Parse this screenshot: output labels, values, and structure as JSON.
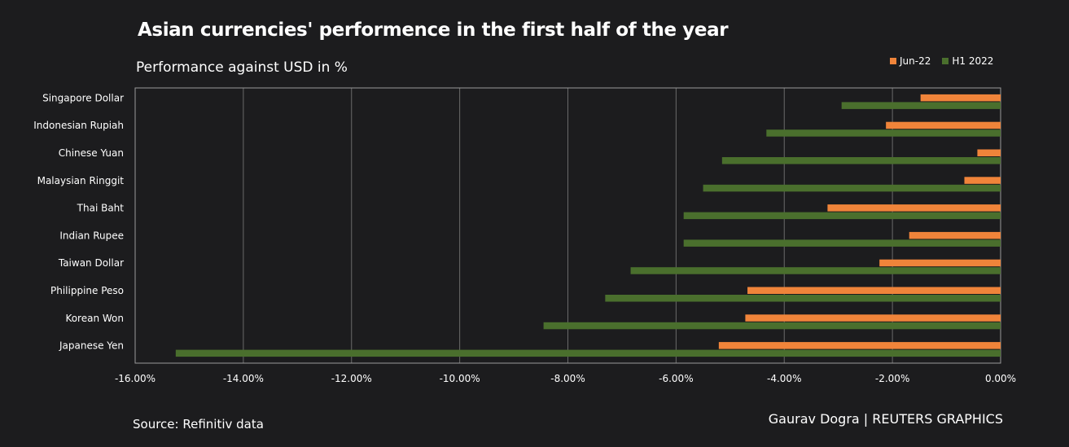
{
  "title": "Asian currencies' performence in the first half of the year",
  "subtitle": "Performance against USD in %",
  "source": "Source: Refinitiv data",
  "credit": "Gaurav Dogra | REUTERS GRAPHICS",
  "colors": {
    "background": "#1c1c1e",
    "jun22": "#f0843a",
    "h1_2022": "#4a6f2d",
    "grid": "#6a6a6a",
    "axis": "#9a9a9a"
  },
  "chart_data": {
    "type": "bar",
    "orientation": "horizontal",
    "categories": [
      "Singapore Dollar",
      "Indonesian Rupiah",
      "Chinese Yuan",
      "Malaysian Ringgit",
      "Thai Baht",
      "Indian Rupee",
      "Taiwan Dollar",
      "Philippine Peso",
      "Korean Won",
      "Japanese Yen"
    ],
    "series": [
      {
        "name": "Jun-22",
        "color": "#f0843a",
        "values": [
          -1.48,
          -2.12,
          -0.43,
          -0.67,
          -3.2,
          -1.69,
          -2.24,
          -4.68,
          -4.72,
          -5.21
        ]
      },
      {
        "name": "H1 2022",
        "color": "#4a6f2d",
        "values": [
          -2.94,
          -4.33,
          -5.15,
          -5.5,
          -5.86,
          -5.86,
          -6.84,
          -7.31,
          -8.45,
          -15.25
        ]
      }
    ],
    "xlim": [
      -16,
      0
    ],
    "xticks": [
      "-16.00%",
      "-14.00%",
      "-12.00%",
      "-10.00%",
      "-8.00%",
      "-6.00%",
      "-4.00%",
      "-2.00%",
      "0.00%"
    ],
    "grid": "vertical",
    "legend_position": "top-right"
  }
}
